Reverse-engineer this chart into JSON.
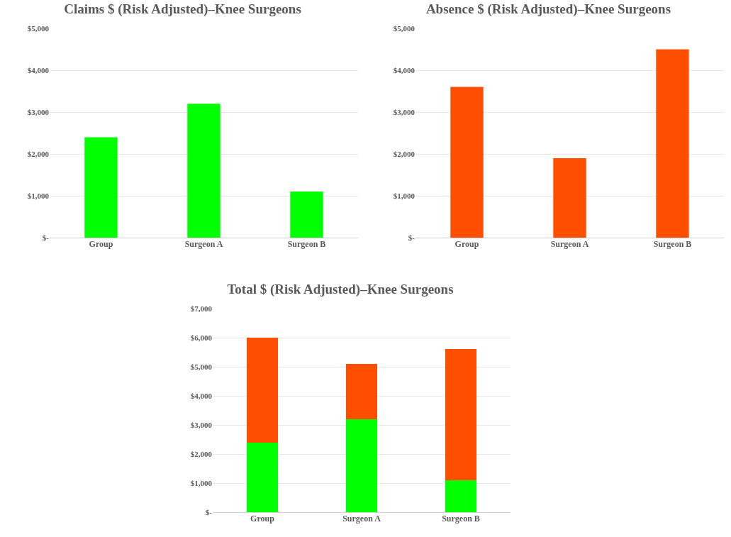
{
  "chart_data": [
    {
      "type": "bar",
      "title": "Claims $ (Risk Adjusted)–Knee Surgeons",
      "categories": [
        "Group",
        "Surgeon A",
        "Surgeon B"
      ],
      "values": [
        2400,
        3200,
        1100
      ],
      "color": "#00ff00",
      "ylim": [
        0,
        5000
      ],
      "yticks": [
        {
          "value": 0,
          "label": "$-"
        },
        {
          "value": 1000,
          "label": "$1,000"
        },
        {
          "value": 2000,
          "label": "$2,000"
        },
        {
          "value": 3000,
          "label": "$3,000"
        },
        {
          "value": 4000,
          "label": "$4,000"
        },
        {
          "value": 5000,
          "label": "$5,000"
        }
      ],
      "grid": "y"
    },
    {
      "type": "bar",
      "title": "Absence $ (Risk Adjusted)–Knee Surgeons",
      "categories": [
        "Group",
        "Surgeon A",
        "Surgeon B"
      ],
      "values": [
        3600,
        1900,
        4500
      ],
      "color": "#ff4e00",
      "ylim": [
        0,
        5000
      ],
      "yticks": [
        {
          "value": 0,
          "label": "$-"
        },
        {
          "value": 1000,
          "label": "$1,000"
        },
        {
          "value": 2000,
          "label": "$2,000"
        },
        {
          "value": 3000,
          "label": "$3,000"
        },
        {
          "value": 4000,
          "label": "$4,000"
        },
        {
          "value": 5000,
          "label": "$5,000"
        }
      ],
      "grid": "y"
    },
    {
      "type": "bar",
      "title": "Total $ (Risk Adjusted)–Knee Surgeons",
      "categories": [
        "Group",
        "Surgeon A",
        "Surgeon B"
      ],
      "stacked": true,
      "series": [
        {
          "color": "#00ff00",
          "values": [
            2400,
            3200,
            1100
          ]
        },
        {
          "color": "#ff4e00",
          "values": [
            3600,
            1900,
            4500
          ]
        }
      ],
      "ylim": [
        0,
        7000
      ],
      "yticks": [
        {
          "value": 0,
          "label": "$-"
        },
        {
          "value": 1000,
          "label": "$1,000"
        },
        {
          "value": 2000,
          "label": "$2,000"
        },
        {
          "value": 3000,
          "label": "$3,000"
        },
        {
          "value": 4000,
          "label": "$4,000"
        },
        {
          "value": 5000,
          "label": "$5,000"
        },
        {
          "value": 6000,
          "label": "$6,000"
        },
        {
          "value": 7000,
          "label": "$7,000"
        }
      ],
      "grid": "y"
    }
  ]
}
